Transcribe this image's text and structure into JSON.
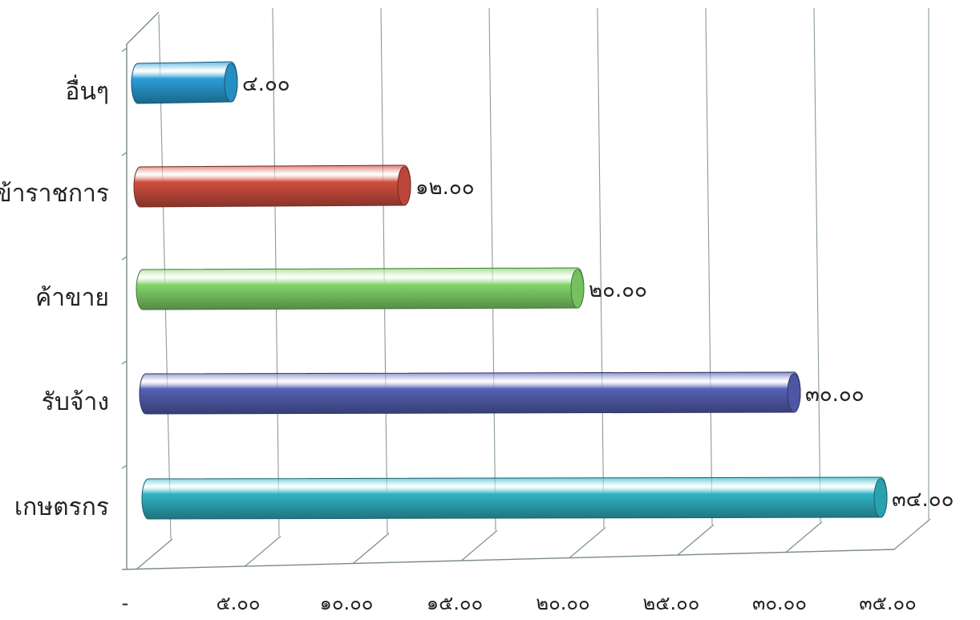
{
  "chart_data": {
    "type": "bar",
    "orientation": "horizontal",
    "style": "3d-cylinder",
    "categories": [
      "เกษตรกร",
      "รับจ้าง",
      "ค้าขาย",
      "ข้าราชการ",
      "อื่นๆ"
    ],
    "values": [
      34,
      30,
      20,
      12,
      4
    ],
    "value_labels": [
      "๓๔.๐๐",
      "๓๐.๐๐",
      "๒๐.๐๐",
      "๑๒.๐๐",
      "๔.๐๐"
    ],
    "colors": [
      "#2fb3c2",
      "#5560b4",
      "#83d56a",
      "#cf4e3f",
      "#2a9fd6"
    ],
    "x_ticks": [
      0,
      5,
      10,
      15,
      20,
      25,
      30,
      35
    ],
    "x_tick_labels": [
      "-",
      "๕.๐๐",
      "๑๐.๐๐",
      "๑๕.๐๐",
      "๒๐.๐๐",
      "๒๕.๐๐",
      "๓๐.๐๐",
      "๓๕.๐๐"
    ],
    "xlim": [
      0,
      35
    ],
    "grid": true,
    "legend": "none"
  }
}
